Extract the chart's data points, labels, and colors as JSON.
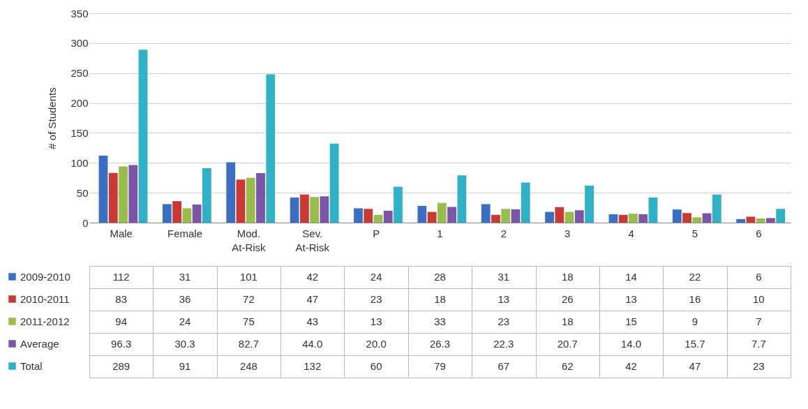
{
  "chart_data": {
    "type": "bar",
    "ylabel": "# of Students",
    "categories": [
      "Male",
      "Female",
      "Mod. At-Risk",
      "Sev. At-Risk",
      "P",
      "1",
      "2",
      "3",
      "4",
      "5",
      "6"
    ],
    "ylim": [
      0,
      350
    ],
    "yticks": [
      0,
      50,
      100,
      150,
      200,
      250,
      300,
      350
    ],
    "grid": "y",
    "legend": "left",
    "series": [
      {
        "name": "2009-2010",
        "color": "#3a6fc4",
        "values": [
          112,
          31,
          101,
          42,
          24,
          28,
          31,
          18,
          14,
          22,
          6
        ],
        "value_labels": [
          "112",
          "31",
          "101",
          "42",
          "24",
          "28",
          "31",
          "18",
          "14",
          "22",
          "6"
        ]
      },
      {
        "name": "2010-2011",
        "color": "#c83a33",
        "values": [
          83,
          36,
          72,
          47,
          23,
          18,
          13,
          26,
          13,
          16,
          10
        ],
        "value_labels": [
          "83",
          "36",
          "72",
          "47",
          "23",
          "18",
          "13",
          "26",
          "13",
          "16",
          "10"
        ]
      },
      {
        "name": "2011-2012",
        "color": "#98bd4c",
        "values": [
          94,
          24,
          75,
          43,
          13,
          33,
          23,
          18,
          15,
          9,
          7
        ],
        "value_labels": [
          "94",
          "24",
          "75",
          "43",
          "13",
          "33",
          "23",
          "18",
          "15",
          "9",
          "7"
        ]
      },
      {
        "name": "Average",
        "color": "#7c55a8",
        "values": [
          96.3,
          30.3,
          82.7,
          44.0,
          20.0,
          26.3,
          22.3,
          20.7,
          14.0,
          15.7,
          7.7
        ],
        "value_labels": [
          "96.3",
          "30.3",
          "82.7",
          "44.0",
          "20.0",
          "26.3",
          "22.3",
          "20.7",
          "14.0",
          "15.7",
          "7.7"
        ]
      },
      {
        "name": "Total",
        "color": "#2fb1c8",
        "values": [
          289,
          91,
          248,
          132,
          60,
          79,
          67,
          62,
          42,
          47,
          23
        ],
        "value_labels": [
          "289",
          "91",
          "248",
          "132",
          "60",
          "79",
          "67",
          "62",
          "42",
          "47",
          "23"
        ]
      }
    ]
  }
}
